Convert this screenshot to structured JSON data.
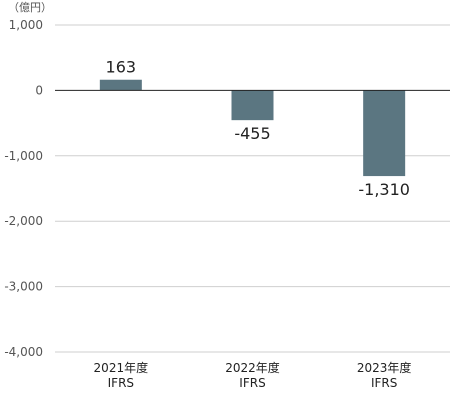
{
  "chart_data": {
    "type": "bar",
    "unit_label": "（億円）",
    "categories": [
      [
        "2021年度",
        "IFRS"
      ],
      [
        "2022年度",
        "IFRS"
      ],
      [
        "2023年度",
        "IFRS"
      ]
    ],
    "values": [
      163,
      -455,
      -1310
    ],
    "value_labels": [
      "163",
      "-455",
      "-1,310"
    ],
    "ylim": [
      -4000,
      1000
    ],
    "yticks": [
      1000,
      0,
      -1000,
      -2000,
      -3000,
      -4000
    ],
    "ytick_labels": [
      "1,000",
      "0",
      "-1,000",
      "-2,000",
      "-3,000",
      "-4,000"
    ],
    "grid": true,
    "bar_color": "#5b7681",
    "title": "",
    "xlabel": "",
    "ylabel": ""
  }
}
